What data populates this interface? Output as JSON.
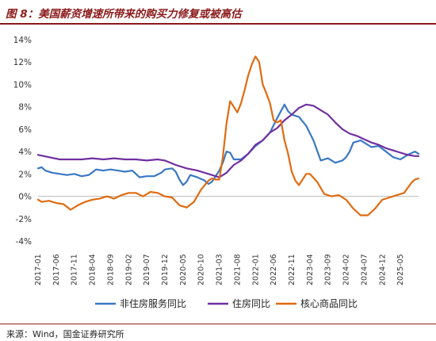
{
  "header": {
    "title": "图 8：美国薪资增速所带来的购买力修复或被高估"
  },
  "footer": {
    "source": "来源：Wind，国金证券研究所"
  },
  "chart_data": {
    "type": "line",
    "title": "图 8：美国薪资增速所带来的购买力修复或被高估",
    "ylabel": "",
    "xlabel": "",
    "ylim": [
      -4,
      14
    ],
    "y_ticks": [
      "-4%",
      "-2%",
      "0%",
      "2%",
      "4%",
      "6%",
      "8%",
      "10%",
      "12%",
      "14%"
    ],
    "y_tick_values": [
      -4,
      -2,
      0,
      2,
      4,
      6,
      8,
      10,
      12,
      14
    ],
    "x_ticks": [
      "2017-01",
      "2017-06",
      "2017-11",
      "2018-04",
      "2018-09",
      "2019-02",
      "2019-07",
      "2019-12",
      "2020-05",
      "2020-10",
      "2021-03",
      "2021-08",
      "2022-01",
      "2022-06",
      "2022-11",
      "2023-04",
      "2023-09",
      "2024-02",
      "2024-07",
      "2024-12",
      "2025-05"
    ],
    "grid": false,
    "legend_position": "bottom",
    "colors": {
      "series1": "#3a78c3",
      "series2": "#7030a0",
      "series3": "#e06b10"
    },
    "series": [
      {
        "name": "非住房服务同比",
        "color": "#3a78c3",
        "points": [
          [
            "2017-01",
            2.5
          ],
          [
            "2017-02",
            2.6
          ],
          [
            "2017-03",
            2.3
          ],
          [
            "2017-05",
            2.1
          ],
          [
            "2017-07",
            2.0
          ],
          [
            "2017-09",
            1.9
          ],
          [
            "2017-11",
            2.0
          ],
          [
            "2018-01",
            1.8
          ],
          [
            "2018-03",
            1.9
          ],
          [
            "2018-05",
            2.4
          ],
          [
            "2018-07",
            2.3
          ],
          [
            "2018-09",
            2.4
          ],
          [
            "2018-11",
            2.3
          ],
          [
            "2019-01",
            2.2
          ],
          [
            "2019-03",
            2.3
          ],
          [
            "2019-05",
            1.7
          ],
          [
            "2019-07",
            1.8
          ],
          [
            "2019-09",
            1.8
          ],
          [
            "2019-11",
            2.1
          ],
          [
            "2019-12",
            2.4
          ],
          [
            "2020-02",
            2.5
          ],
          [
            "2020-03",
            2.2
          ],
          [
            "2020-04",
            1.5
          ],
          [
            "2020-05",
            1.0
          ],
          [
            "2020-06",
            1.3
          ],
          [
            "2020-07",
            1.9
          ],
          [
            "2020-09",
            1.7
          ],
          [
            "2020-11",
            1.4
          ],
          [
            "2020-12",
            1.1
          ],
          [
            "2021-01",
            1.3
          ],
          [
            "2021-02",
            1.8
          ],
          [
            "2021-03",
            2.3
          ],
          [
            "2021-04",
            3.0
          ],
          [
            "2021-05",
            4.0
          ],
          [
            "2021-06",
            3.9
          ],
          [
            "2021-07",
            3.3
          ],
          [
            "2021-09",
            3.3
          ],
          [
            "2021-11",
            3.8
          ],
          [
            "2022-01",
            4.5
          ],
          [
            "2022-03",
            5.0
          ],
          [
            "2022-05",
            5.7
          ],
          [
            "2022-07",
            7.0
          ],
          [
            "2022-09",
            8.2
          ],
          [
            "2022-10",
            7.6
          ],
          [
            "2022-11",
            7.3
          ],
          [
            "2023-01",
            7.1
          ],
          [
            "2023-03",
            6.3
          ],
          [
            "2023-05",
            5.0
          ],
          [
            "2023-07",
            3.2
          ],
          [
            "2023-09",
            3.4
          ],
          [
            "2023-11",
            3.0
          ],
          [
            "2024-01",
            3.2
          ],
          [
            "2024-02",
            3.5
          ],
          [
            "2024-03",
            4.0
          ],
          [
            "2024-04",
            4.8
          ],
          [
            "2024-06",
            5.0
          ],
          [
            "2024-07",
            4.8
          ],
          [
            "2024-09",
            4.4
          ],
          [
            "2024-11",
            4.5
          ],
          [
            "2025-01",
            4.0
          ],
          [
            "2025-03",
            3.5
          ],
          [
            "2025-05",
            3.3
          ],
          [
            "2025-07",
            3.7
          ],
          [
            "2025-09",
            4.0
          ],
          [
            "2025-10",
            3.8
          ]
        ]
      },
      {
        "name": "住房同比",
        "color": "#7030a0",
        "points": [
          [
            "2017-01",
            3.7
          ],
          [
            "2017-04",
            3.5
          ],
          [
            "2017-07",
            3.3
          ],
          [
            "2017-10",
            3.3
          ],
          [
            "2018-01",
            3.3
          ],
          [
            "2018-04",
            3.4
          ],
          [
            "2018-07",
            3.3
          ],
          [
            "2018-10",
            3.4
          ],
          [
            "2019-01",
            3.3
          ],
          [
            "2019-04",
            3.3
          ],
          [
            "2019-07",
            3.2
          ],
          [
            "2019-10",
            3.3
          ],
          [
            "2019-12",
            3.2
          ],
          [
            "2020-03",
            2.8
          ],
          [
            "2020-06",
            2.5
          ],
          [
            "2020-09",
            2.3
          ],
          [
            "2020-12",
            2.0
          ],
          [
            "2021-03",
            1.7
          ],
          [
            "2021-05",
            2.1
          ],
          [
            "2021-07",
            2.8
          ],
          [
            "2021-09",
            3.2
          ],
          [
            "2021-11",
            3.8
          ],
          [
            "2022-01",
            4.6
          ],
          [
            "2022-03",
            5.0
          ],
          [
            "2022-05",
            5.7
          ],
          [
            "2022-07",
            6.1
          ],
          [
            "2022-09",
            6.8
          ],
          [
            "2022-11",
            7.3
          ],
          [
            "2023-01",
            7.9
          ],
          [
            "2023-03",
            8.2
          ],
          [
            "2023-05",
            8.1
          ],
          [
            "2023-07",
            7.7
          ],
          [
            "2023-09",
            7.3
          ],
          [
            "2023-11",
            6.6
          ],
          [
            "2024-01",
            6.0
          ],
          [
            "2024-03",
            5.6
          ],
          [
            "2024-05",
            5.4
          ],
          [
            "2024-07",
            5.1
          ],
          [
            "2024-09",
            4.8
          ],
          [
            "2024-11",
            4.6
          ],
          [
            "2025-01",
            4.3
          ],
          [
            "2025-03",
            4.1
          ],
          [
            "2025-05",
            3.9
          ],
          [
            "2025-07",
            3.7
          ],
          [
            "2025-09",
            3.6
          ],
          [
            "2025-10",
            3.6
          ]
        ]
      },
      {
        "name": "核心商品同比",
        "color": "#e06b10",
        "points": [
          [
            "2017-01",
            -0.3
          ],
          [
            "2017-02",
            -0.5
          ],
          [
            "2017-04",
            -0.4
          ],
          [
            "2017-06",
            -0.6
          ],
          [
            "2017-08",
            -0.7
          ],
          [
            "2017-10",
            -1.2
          ],
          [
            "2017-12",
            -0.8
          ],
          [
            "2018-02",
            -0.5
          ],
          [
            "2018-04",
            -0.3
          ],
          [
            "2018-06",
            -0.2
          ],
          [
            "2018-08",
            0.0
          ],
          [
            "2018-10",
            -0.2
          ],
          [
            "2018-12",
            0.1
          ],
          [
            "2019-02",
            0.3
          ],
          [
            "2019-04",
            0.3
          ],
          [
            "2019-06",
            0.0
          ],
          [
            "2019-08",
            0.4
          ],
          [
            "2019-10",
            0.3
          ],
          [
            "2019-12",
            0.0
          ],
          [
            "2020-02",
            -0.1
          ],
          [
            "2020-04",
            -0.8
          ],
          [
            "2020-06",
            -1.0
          ],
          [
            "2020-08",
            -0.5
          ],
          [
            "2020-10",
            0.6
          ],
          [
            "2020-12",
            1.4
          ],
          [
            "2021-01",
            1.6
          ],
          [
            "2021-02",
            1.5
          ],
          [
            "2021-03",
            1.5
          ],
          [
            "2021-04",
            3.5
          ],
          [
            "2021-05",
            6.5
          ],
          [
            "2021-06",
            8.5
          ],
          [
            "2021-07",
            8.0
          ],
          [
            "2021-08",
            7.5
          ],
          [
            "2021-09",
            8.3
          ],
          [
            "2021-10",
            9.5
          ],
          [
            "2021-11",
            10.8
          ],
          [
            "2021-12",
            11.8
          ],
          [
            "2022-01",
            12.5
          ],
          [
            "2022-02",
            12.0
          ],
          [
            "2022-03",
            10.0
          ],
          [
            "2022-04",
            9.2
          ],
          [
            "2022-05",
            8.3
          ],
          [
            "2022-06",
            6.8
          ],
          [
            "2022-07",
            6.6
          ],
          [
            "2022-08",
            6.8
          ],
          [
            "2022-09",
            5.0
          ],
          [
            "2022-10",
            3.8
          ],
          [
            "2022-11",
            2.2
          ],
          [
            "2022-12",
            1.4
          ],
          [
            "2023-01",
            1.0
          ],
          [
            "2023-02",
            1.5
          ],
          [
            "2023-03",
            2.0
          ],
          [
            "2023-04",
            2.0
          ],
          [
            "2023-06",
            1.3
          ],
          [
            "2023-08",
            0.2
          ],
          [
            "2023-10",
            0.0
          ],
          [
            "2023-12",
            0.1
          ],
          [
            "2024-02",
            -0.3
          ],
          [
            "2024-04",
            -1.1
          ],
          [
            "2024-06",
            -1.7
          ],
          [
            "2024-08",
            -1.7
          ],
          [
            "2024-10",
            -1.1
          ],
          [
            "2024-12",
            -0.3
          ],
          [
            "2025-02",
            -0.1
          ],
          [
            "2025-04",
            0.1
          ],
          [
            "2025-06",
            0.3
          ],
          [
            "2025-08",
            1.2
          ],
          [
            "2025-09",
            1.5
          ],
          [
            "2025-10",
            1.6
          ]
        ]
      }
    ]
  }
}
